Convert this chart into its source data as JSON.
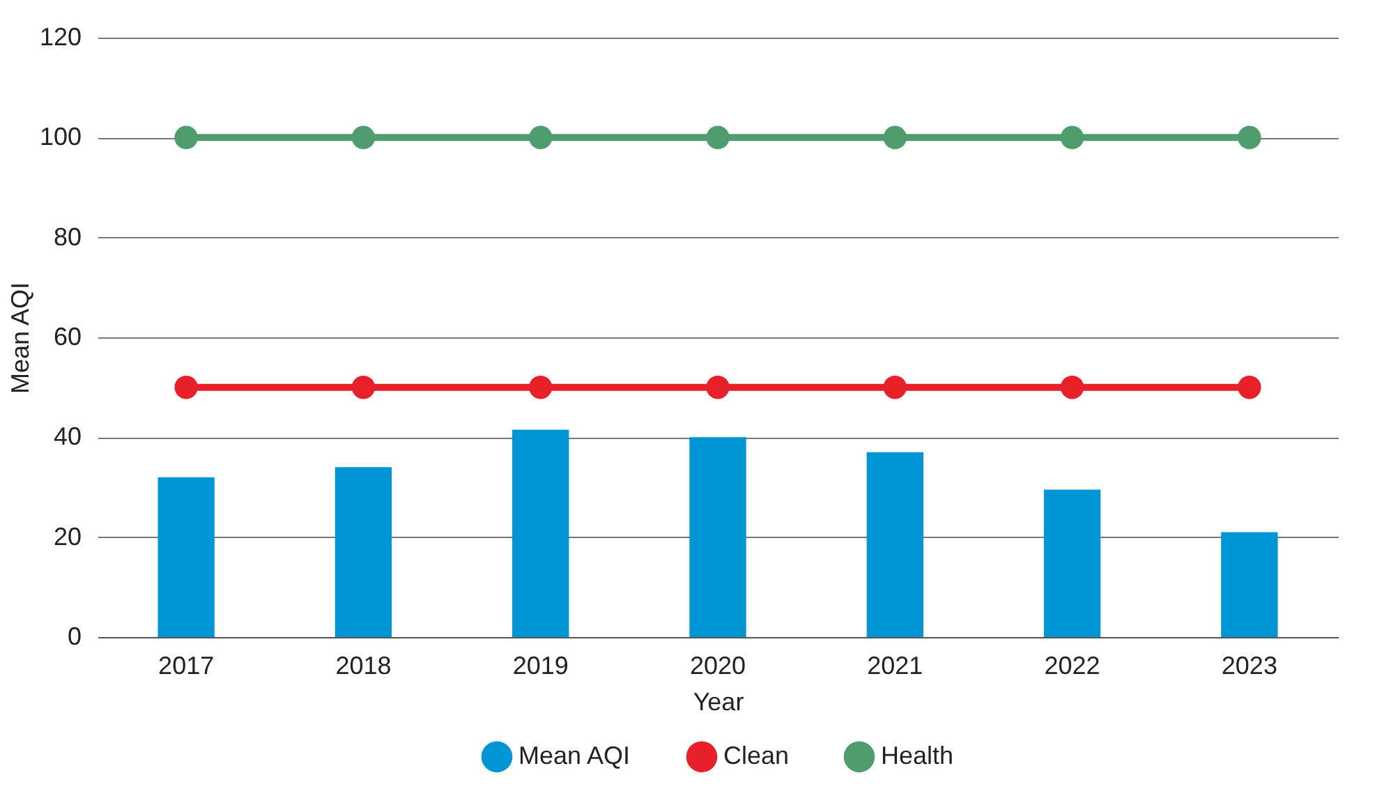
{
  "chart_data": {
    "type": "bar",
    "xlabel": "Year",
    "ylabel": "Mean AQI",
    "categories": [
      "2017",
      "2018",
      "2019",
      "2020",
      "2021",
      "2022",
      "2023"
    ],
    "series": [
      {
        "name": "Mean AQI",
        "color": "#0096d6",
        "values": [
          32,
          34,
          41.5,
          40,
          37,
          29.5,
          21
        ]
      },
      {
        "name": "Clean",
        "type": "line",
        "color": "#e8202a",
        "values": [
          50,
          50,
          50,
          50,
          50,
          50,
          50
        ]
      },
      {
        "name": "Health",
        "type": "line",
        "color": "#4f9c6e",
        "values": [
          100,
          100,
          100,
          100,
          100,
          100,
          100
        ]
      }
    ],
    "ylim": [
      0,
      120
    ],
    "yticks": [
      0,
      20,
      40,
      60,
      80,
      100,
      120
    ],
    "grid": "y",
    "legend": "bottom",
    "marker": "circle",
    "line_style": "solid"
  }
}
